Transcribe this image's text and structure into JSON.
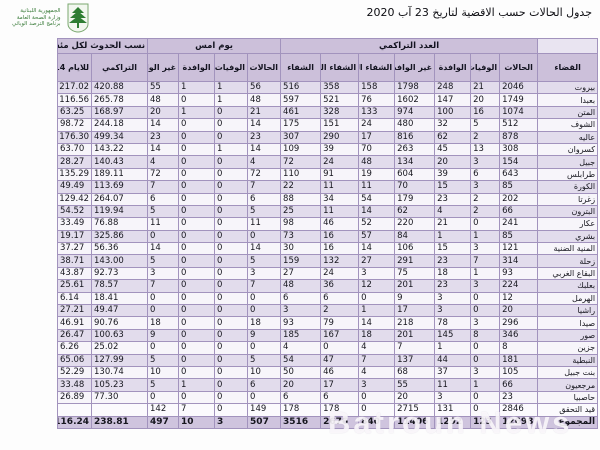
{
  "page": {
    "watermark": "Batroun News",
    "logo": {
      "line1": "الجمهورية اللبنانية",
      "line2": "وزارة الصحة العامة",
      "line3": "برنامج الترصد الوبائي"
    },
    "colors": {
      "header_fill": "#CCC0DA",
      "band_fill": "#E2DCEC",
      "plain_fill": "#F7F5FA",
      "total_fill": "#CFC4DE",
      "grid": "#A293BD",
      "logo_green": "#3C7D3C"
    }
  },
  "chart_data": {
    "type": "table",
    "title": "جدول الحالات حسب الاقضية لتاريخ 23 آب 2020",
    "direction": "rtl",
    "district_header": "القضاء",
    "column_groups": [
      {
        "label": "العدد التراكمي",
        "span": 7
      },
      {
        "label": "يوم امس",
        "span": 4
      },
      {
        "label": "نسب الحدوث لكل مئة الف نسمة",
        "span": 2
      }
    ],
    "columns": [
      "الحالات",
      "الوفيات",
      "الوافدة",
      "غير الوافدة",
      "الشفاء المخبري",
      "الشفاء الزمني",
      "الشفاء",
      "الحالات",
      "الوفيات",
      "الوافدة",
      "غير الوافدة",
      "التراكمي",
      "للايام 14 الأخيرة"
    ],
    "rows": [
      {
        "district": "بيروت",
        "values": [
          2046,
          21,
          248,
          1798,
          158,
          358,
          516,
          56,
          1,
          1,
          55,
          "420.88",
          "217.02"
        ]
      },
      {
        "district": "بعبدا",
        "values": [
          1749,
          20,
          147,
          1602,
          76,
          521,
          597,
          48,
          1,
          0,
          48,
          "265.78",
          "116.56"
        ]
      },
      {
        "district": "المتن",
        "values": [
          1074,
          16,
          100,
          974,
          133,
          328,
          461,
          21,
          0,
          1,
          20,
          "168.97",
          "63.25"
        ]
      },
      {
        "district": "الشوف",
        "values": [
          512,
          5,
          32,
          480,
          24,
          151,
          175,
          14,
          0,
          0,
          14,
          "244.18",
          "98.72"
        ]
      },
      {
        "district": "عاليه",
        "values": [
          878,
          2,
          62,
          816,
          17,
          290,
          307,
          23,
          0,
          0,
          23,
          "499.34",
          "176.30"
        ]
      },
      {
        "district": "كسروان",
        "values": [
          308,
          13,
          45,
          263,
          70,
          39,
          109,
          14,
          1,
          0,
          14,
          "143.22",
          "63.70"
        ]
      },
      {
        "district": "جبيل",
        "values": [
          154,
          3,
          20,
          134,
          48,
          24,
          72,
          4,
          0,
          0,
          4,
          "140.43",
          "28.27"
        ]
      },
      {
        "district": "طرابلس",
        "values": [
          643,
          6,
          39,
          604,
          19,
          91,
          110,
          72,
          0,
          0,
          72,
          "189.11",
          "135.29"
        ]
      },
      {
        "district": "الكورة",
        "values": [
          85,
          3,
          15,
          70,
          11,
          11,
          22,
          7,
          0,
          0,
          7,
          "113.69",
          "49.49"
        ]
      },
      {
        "district": "زغرتا",
        "values": [
          202,
          2,
          23,
          179,
          54,
          34,
          88,
          6,
          0,
          0,
          6,
          "264.07",
          "129.42"
        ]
      },
      {
        "district": "البترون",
        "values": [
          66,
          2,
          4,
          62,
          14,
          11,
          25,
          5,
          0,
          0,
          5,
          "119.94",
          "54.52"
        ]
      },
      {
        "district": "عكار",
        "values": [
          241,
          0,
          21,
          220,
          52,
          46,
          98,
          11,
          0,
          0,
          11,
          "76.88",
          "33.49"
        ]
      },
      {
        "district": "بشري",
        "values": [
          85,
          1,
          1,
          84,
          57,
          16,
          73,
          0,
          0,
          0,
          0,
          "325.86",
          "19.17"
        ]
      },
      {
        "district": "المنية الضنية",
        "values": [
          121,
          3,
          15,
          106,
          14,
          16,
          30,
          14,
          0,
          0,
          14,
          "56.36",
          "37.27"
        ]
      },
      {
        "district": "زحلة",
        "values": [
          314,
          7,
          23,
          291,
          27,
          132,
          159,
          5,
          0,
          0,
          5,
          "143.00",
          "38.71"
        ]
      },
      {
        "district": "البقاع الغربي",
        "values": [
          93,
          1,
          18,
          75,
          3,
          24,
          27,
          3,
          0,
          0,
          3,
          "92.73",
          "43.87"
        ]
      },
      {
        "district": "بعلبك",
        "values": [
          224,
          3,
          23,
          201,
          12,
          36,
          48,
          7,
          0,
          0,
          7,
          "78.57",
          "25.61"
        ]
      },
      {
        "district": "الهرمل",
        "values": [
          12,
          0,
          3,
          9,
          0,
          6,
          6,
          0,
          0,
          0,
          0,
          "18.41",
          "6.14"
        ]
      },
      {
        "district": "راشيا",
        "values": [
          20,
          0,
          3,
          17,
          1,
          2,
          3,
          0,
          0,
          0,
          0,
          "49.47",
          "27.21"
        ]
      },
      {
        "district": "صيدا",
        "values": [
          296,
          3,
          78,
          218,
          14,
          79,
          93,
          18,
          0,
          0,
          18,
          "90.76",
          "46.91"
        ]
      },
      {
        "district": "صور",
        "values": [
          346,
          8,
          145,
          201,
          18,
          167,
          185,
          9,
          0,
          0,
          9,
          "100.63",
          "26.47"
        ]
      },
      {
        "district": "جزين",
        "values": [
          8,
          0,
          1,
          7,
          4,
          0,
          4,
          0,
          0,
          0,
          0,
          "25.02",
          "6.26"
        ]
      },
      {
        "district": "النبطية",
        "values": [
          181,
          0,
          44,
          137,
          7,
          47,
          54,
          5,
          0,
          0,
          5,
          "127.99",
          "65.06"
        ]
      },
      {
        "district": "بنت جبيل",
        "values": [
          105,
          3,
          37,
          68,
          4,
          46,
          50,
          10,
          0,
          0,
          10,
          "130.74",
          "52.29"
        ]
      },
      {
        "district": "مرجعيون",
        "values": [
          66,
          1,
          11,
          55,
          3,
          17,
          20,
          6,
          0,
          1,
          5,
          "105.23",
          "33.48"
        ]
      },
      {
        "district": "حاصبيا",
        "values": [
          23,
          0,
          3,
          20,
          0,
          6,
          6,
          0,
          0,
          0,
          0,
          "77.30",
          "26.89"
        ]
      },
      {
        "district": "قيد التحقق",
        "values": [
          2846,
          0,
          131,
          2715,
          0,
          178,
          178,
          149,
          0,
          7,
          142,
          "",
          ""
        ]
      }
    ],
    "totals_row": {
      "district": "المجموع",
      "values": [
        12698,
        123,
        1292,
        11406,
        840,
        2676,
        3516,
        507,
        3,
        10,
        497,
        "238.81",
        "116.24"
      ]
    }
  }
}
